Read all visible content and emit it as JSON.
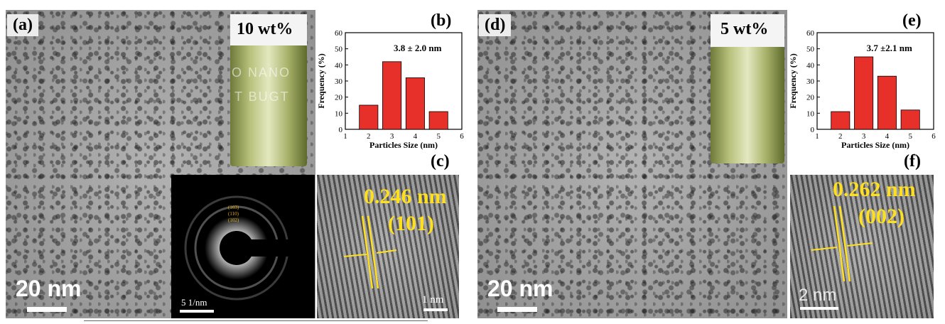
{
  "figure": {
    "left": {
      "panel_a_label": "(a)",
      "panel_b_label": "(b)",
      "panel_c_label": "(c)",
      "vial_label": "10 wt%",
      "vial_text_1": "O NANO",
      "vial_text_2": "T  BUGT",
      "scale_main": "20 nm",
      "saed_scale": "5 1/nm",
      "saed_rings": [
        "(103)",
        "(110)",
        "(102)"
      ],
      "hrtem_spacing": "0.246 nm",
      "hrtem_plane": "(101)",
      "hrtem_scale": "1 nm"
    },
    "right": {
      "panel_d_label": "(d)",
      "panel_e_label": "(e)",
      "panel_f_label": "(f)",
      "vial_label": "5 wt%",
      "scale_main": "20 nm",
      "hrtem_spacing": "0.262 nm",
      "hrtem_plane": "(002)",
      "hrtem_scale": "2 nm"
    }
  },
  "chart_data": [
    {
      "type": "bar",
      "panel": "(b)",
      "annotation": "3.8 ± 2.0 nm",
      "xlabel": "Particles Size (nm)",
      "ylabel": "Frequency (%)",
      "x": [
        2,
        3,
        4,
        5
      ],
      "values": [
        15,
        42,
        32,
        11
      ],
      "xlim": [
        1,
        6
      ],
      "ylim": [
        0,
        60
      ],
      "xticks": [
        "1",
        "2",
        "3",
        "4",
        "5",
        "6"
      ],
      "yticks": [
        "0",
        "10",
        "20",
        "30",
        "40",
        "50",
        "60"
      ],
      "bar_color": "#e8302a"
    },
    {
      "type": "bar",
      "panel": "(e)",
      "annotation": "3.7 ±2.1 nm",
      "xlabel": "Particles Size (nm)",
      "ylabel": "Frequency (%)",
      "x": [
        2,
        3,
        4,
        5
      ],
      "values": [
        11,
        45,
        33,
        12
      ],
      "xlim": [
        1,
        6
      ],
      "ylim": [
        0,
        60
      ],
      "xticks": [
        "1",
        "2",
        "3",
        "4",
        "5",
        "6"
      ],
      "yticks": [
        "0",
        "10",
        "20",
        "30",
        "40",
        "50",
        "60"
      ],
      "bar_color": "#e8302a"
    }
  ]
}
